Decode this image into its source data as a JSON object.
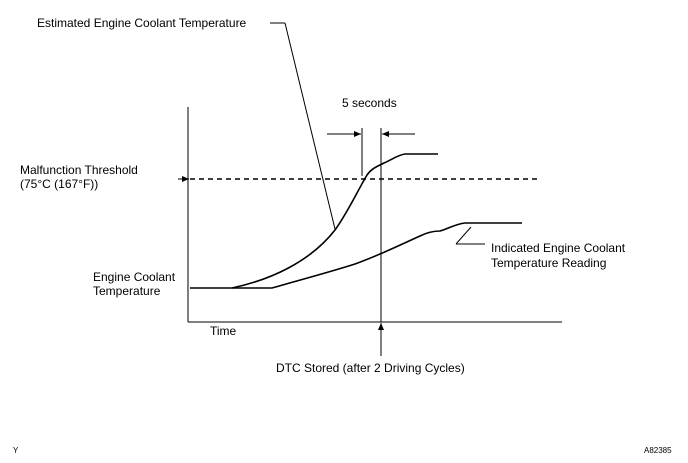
{
  "labels": {
    "estimated_curve": "Estimated Engine Coolant Temperature",
    "five_seconds": "5 seconds",
    "threshold_line1": "Malfunction Threshold",
    "threshold_line2": "(75°C (167°F))",
    "y_axis_line1": "Engine Coolant",
    "y_axis_line2": "Temperature",
    "x_axis": "Time",
    "indicated_line1": "Indicated Engine Coolant",
    "indicated_line2": "Temperature Reading",
    "dtc_stored": "DTC Stored (after 2 Driving Cycles)"
  },
  "corner_left": "Y",
  "figure_code": "A82385",
  "colors": {
    "ink": "#000000",
    "background": "#ffffff"
  }
}
